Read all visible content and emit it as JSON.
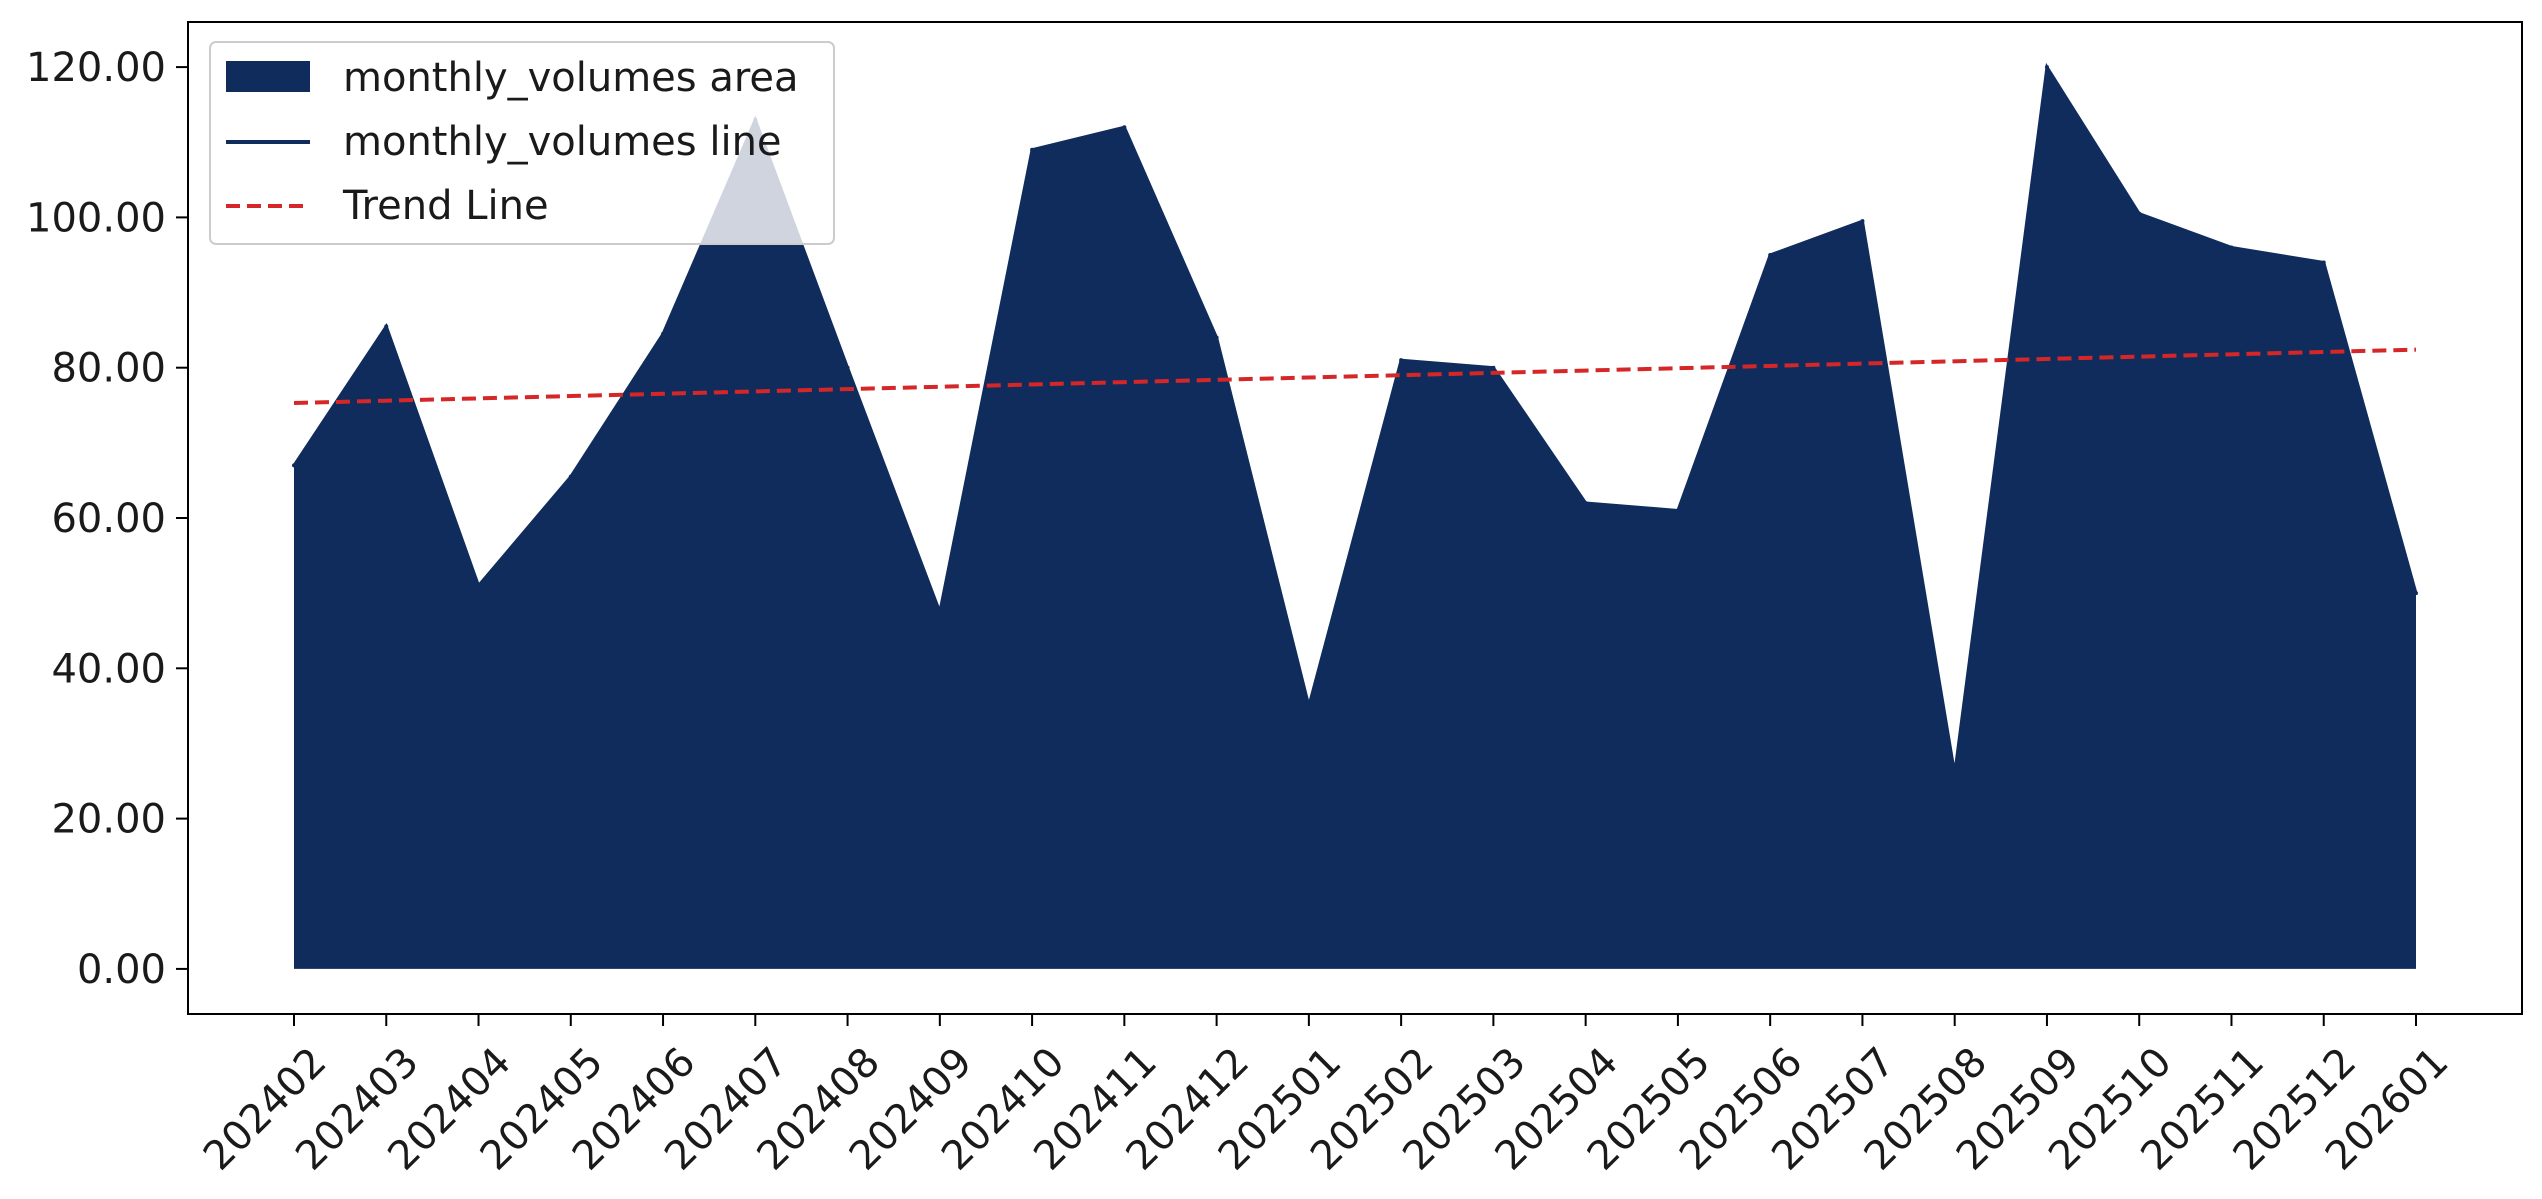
{
  "chart_data": {
    "type": "area",
    "categories": [
      "202402",
      "202403",
      "202404",
      "202405",
      "202406",
      "202407",
      "202408",
      "202409",
      "202410",
      "202411",
      "202412",
      "202501",
      "202502",
      "202503",
      "202504",
      "202505",
      "202506",
      "202507",
      "202508",
      "202509",
      "202510",
      "202511",
      "202512",
      "202601"
    ],
    "series": [
      {
        "name": "monthly_volumes area",
        "kind": "area",
        "color": "#0f2c5c",
        "values": [
          67.0,
          85.5,
          51.0,
          65.5,
          84.5,
          113.0,
          80.0,
          47.5,
          109.0,
          112.0,
          84.0,
          35.0,
          81.0,
          80.0,
          62.0,
          61.0,
          95.0,
          99.5,
          26.0,
          120.0,
          100.5,
          96.0,
          94.0,
          50.0
        ]
      },
      {
        "name": "monthly_volumes line",
        "kind": "line",
        "color": "#0f2c5c"
      },
      {
        "name": "Trend Line",
        "kind": "trend",
        "color": "#d62728",
        "start": 75.3,
        "end": 82.4
      }
    ],
    "yticks": [
      "0.00",
      "20.00",
      "40.00",
      "60.00",
      "80.00",
      "100.00",
      "120.00"
    ],
    "ylim": [
      -6.0,
      126.0
    ],
    "legend_position": "top-left",
    "grid": false
  }
}
